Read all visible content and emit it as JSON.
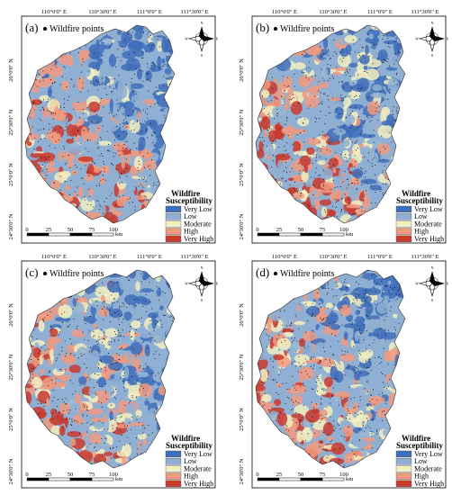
{
  "panels": [
    {
      "label": "(a)"
    },
    {
      "label": "(b)"
    },
    {
      "label": "(c)"
    },
    {
      "label": "(d)"
    }
  ],
  "points_legend": "Wildfire points",
  "lon_ticks": [
    "110°0'0\" E",
    "110°30'0\" E",
    "111°0'0\" E",
    "111°30'0\" E"
  ],
  "lat_ticks": [
    "26°0'0\" N",
    "25°30'0\" N",
    "25°0'0\" N",
    "24°30'0\" N"
  ],
  "legend": {
    "title_line1": "Wildfire",
    "title_line2": "Susceptibility",
    "classes": [
      {
        "label": "Very Low",
        "color": "#3f6fba"
      },
      {
        "label": "Low",
        "color": "#8fb0d3"
      },
      {
        "label": "Moderate",
        "color": "#f3efbf"
      },
      {
        "label": "High",
        "color": "#f09a80"
      },
      {
        "label": "Very High",
        "color": "#c93a2e"
      }
    ]
  },
  "scale_bar": {
    "ticks": [
      "0",
      "25",
      "50",
      "75",
      "100"
    ],
    "unit": "km"
  },
  "north_arrow": {
    "north": "N",
    "south": "S",
    "east": "E",
    "west": "W"
  }
}
